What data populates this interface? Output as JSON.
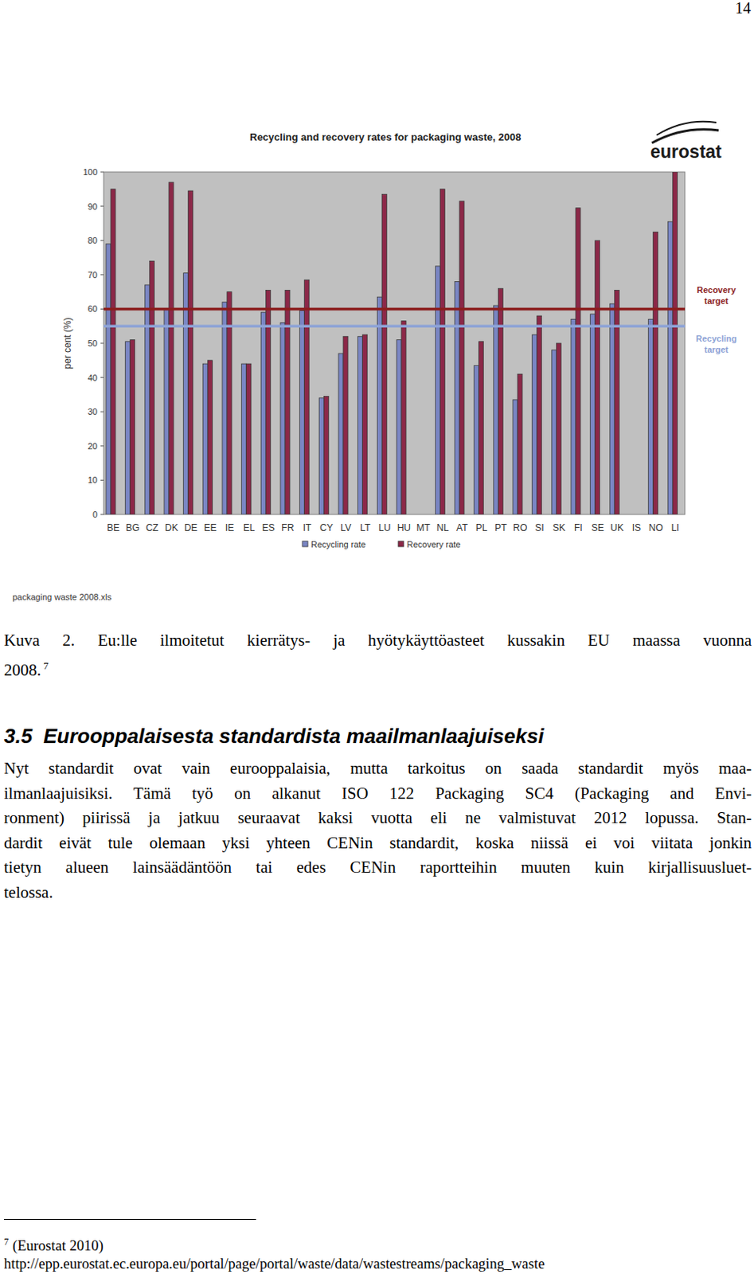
{
  "page_number": "14",
  "chart_data": {
    "type": "bar",
    "title": "Recycling and recovery rates for packaging waste, 2008",
    "logo": "eurostat",
    "y_label": "per cent (%)",
    "categories": [
      "BE",
      "BG",
      "CZ",
      "DK",
      "DE",
      "EE",
      "IE",
      "EL",
      "ES",
      "FR",
      "IT",
      "CY",
      "LV",
      "LT",
      "LU",
      "HU",
      "MT",
      "NL",
      "AT",
      "PL",
      "PT",
      "RO",
      "SI",
      "SK",
      "FI",
      "SE",
      "UK",
      "IS",
      "NO",
      "LI"
    ],
    "series": [
      {
        "name": "Recycling rate",
        "color": "#7a86c4",
        "values": [
          79,
          50.5,
          67,
          60,
          70.5,
          44,
          62,
          44,
          59,
          56,
          59.5,
          34,
          47,
          52,
          63.5,
          51,
          null,
          72.5,
          68,
          43.5,
          61,
          33.5,
          52.5,
          48,
          57,
          58.5,
          61.5,
          null,
          57,
          85.5
        ]
      },
      {
        "name": "Recovery rate",
        "color": "#8c2848",
        "values": [
          95,
          51,
          74,
          97,
          94.5,
          45,
          65,
          44,
          65.5,
          65.5,
          68.5,
          34.5,
          52,
          52.5,
          93.5,
          56.5,
          null,
          95,
          91.5,
          50.5,
          66,
          41,
          58,
          50,
          89.5,
          80,
          65.5,
          null,
          82.5,
          100
        ]
      }
    ],
    "targets": [
      {
        "label": "Recovery target",
        "value": 60,
        "color": "#8b1e1e"
      },
      {
        "label": "Recycling target",
        "value": 55,
        "color": "#8ea3d6"
      }
    ],
    "ylim": [
      0,
      100
    ],
    "yticks": [
      0,
      10,
      20,
      30,
      40,
      50,
      60,
      70,
      80,
      90,
      100
    ],
    "grid": false,
    "legend": "bottom",
    "source": "packaging waste 2008.xls"
  },
  "caption": {
    "lines": [
      "Kuva 2. Eu:lle ilmoitetut kierrätys- ja hyötykäyttöasteet kussakin EU maassa vuonna",
      "2008."
    ],
    "footnote_ref": "7"
  },
  "section": {
    "number": "3.5",
    "title": "Eurooppalaisesta standardista maailmanlaajuiseksi"
  },
  "paragraph": {
    "lines": [
      "Nyt standardit ovat vain eurooppalaisia, mutta tarkoitus on saada standardit myös maa-",
      "ilmanlaajuisiksi. Tämä työ on alkanut ISO 122 Packaging SC4 (Packaging and Envi-",
      "ronment) piirissä ja jatkuu seuraavat kaksi vuotta eli ne valmistuvat 2012 lopussa. Stan-",
      "dardit eivät tule olemaan yksi yhteen CENin standardit, koska niissä ei voi viitata jonkin",
      "tietyn alueen lainsäädäntöön tai edes CENin raportteihin muuten kuin kirjallisuusluet-",
      "telossa."
    ]
  },
  "footnote": {
    "marker": "7",
    "lines": [
      "(Eurostat 2010)",
      "http://epp.eurostat.ec.europa.eu/portal/page/portal/waste/data/wastestreams/packaging_waste"
    ]
  }
}
